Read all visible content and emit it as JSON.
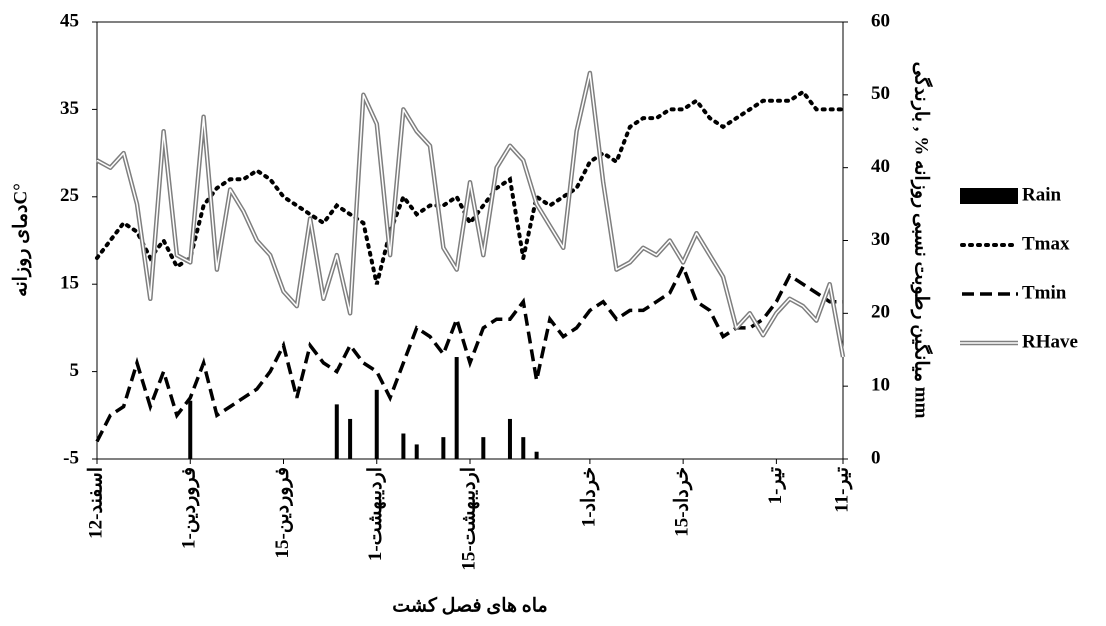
{
  "chart_data": {
    "type": "combo",
    "x_label": "ماه های فصل کشت",
    "y_label": "دمای روزانهC°",
    "y2_label": "میانگین رطوبت نسبی روزانه % , بارندگی mm",
    "categories": [
      "12-اسفند",
      null,
      null,
      null,
      null,
      null,
      null,
      "1-فروردین",
      null,
      null,
      null,
      null,
      null,
      null,
      "15-فروردین",
      null,
      null,
      null,
      null,
      null,
      null,
      "1-اردیبهشت",
      null,
      null,
      null,
      null,
      null,
      null,
      "15-اردیبهشت",
      null,
      null,
      null,
      null,
      null,
      null,
      null,
      null,
      "1-خرداد",
      null,
      null,
      null,
      null,
      null,
      null,
      "15-خرداد",
      null,
      null,
      null,
      null,
      null,
      null,
      "1-تیر",
      null,
      null,
      null,
      null,
      "11-تیر"
    ],
    "ylim": [
      -5,
      45
    ],
    "yticks": [
      -5,
      5,
      15,
      25,
      35,
      45
    ],
    "y2lim": [
      0,
      60
    ],
    "y2ticks": [
      0,
      10,
      20,
      30,
      40,
      50,
      60
    ],
    "legend": "right",
    "series": [
      {
        "name": "Rain",
        "type": "bar",
        "axis": "y2",
        "color": "#000000",
        "values": [
          0,
          0,
          0,
          0,
          0,
          0,
          0,
          8,
          0,
          0,
          0,
          0,
          0,
          0,
          0,
          0,
          0,
          0,
          7.5,
          5.5,
          0,
          9.5,
          0,
          3.5,
          2,
          0,
          3,
          14,
          0,
          3,
          0,
          5.5,
          3,
          1,
          0,
          0,
          0,
          0,
          0,
          0,
          0,
          0,
          0,
          0,
          0,
          0,
          0,
          0,
          0,
          0,
          0,
          0,
          0,
          0,
          0,
          0,
          0
        ]
      },
      {
        "name": "Tmax",
        "type": "line",
        "style": "dotted",
        "color": "#000000",
        "values": [
          18,
          20,
          22,
          21,
          18,
          20,
          17,
          18,
          24,
          26,
          27,
          27,
          28,
          27,
          25,
          24,
          23,
          22,
          24,
          23,
          22,
          15,
          21,
          25,
          23,
          24,
          24,
          25,
          22,
          24,
          26,
          27,
          18,
          25,
          24,
          25,
          26,
          29,
          30,
          29,
          33,
          34,
          34,
          35,
          35,
          36,
          34,
          33,
          34,
          35,
          36,
          36,
          36,
          37,
          35,
          35,
          35
        ]
      },
      {
        "name": "Tmin",
        "type": "line",
        "style": "dashed",
        "color": "#000000",
        "values": [
          -3,
          0,
          1,
          6,
          1,
          5,
          0,
          2,
          6,
          0,
          1,
          2,
          3,
          5,
          8,
          2,
          8,
          6,
          5,
          8,
          6,
          5,
          2,
          6,
          10,
          9,
          7,
          11,
          6,
          10,
          11,
          11,
          13,
          4,
          11,
          9,
          10,
          12,
          13,
          11,
          12,
          12,
          13,
          14,
          17,
          13,
          12,
          9,
          10,
          10,
          11,
          13,
          16,
          15,
          14,
          13,
          13
        ]
      },
      {
        "name": "RHave",
        "type": "line",
        "style": "double",
        "axis": "y2",
        "color": "#7f7f7f",
        "values": [
          41,
          40,
          42,
          35,
          22,
          45,
          28,
          27,
          47,
          26,
          37,
          34,
          30,
          28,
          23,
          21,
          33,
          22,
          28,
          20,
          50,
          46,
          28,
          48,
          45,
          43,
          29,
          26,
          38,
          28,
          40,
          43,
          41,
          35,
          32,
          29,
          45,
          53,
          38,
          26,
          27,
          29,
          28,
          30,
          27,
          31,
          28,
          25,
          18,
          20,
          17,
          20,
          22,
          21,
          19,
          24,
          14
        ]
      }
    ]
  }
}
